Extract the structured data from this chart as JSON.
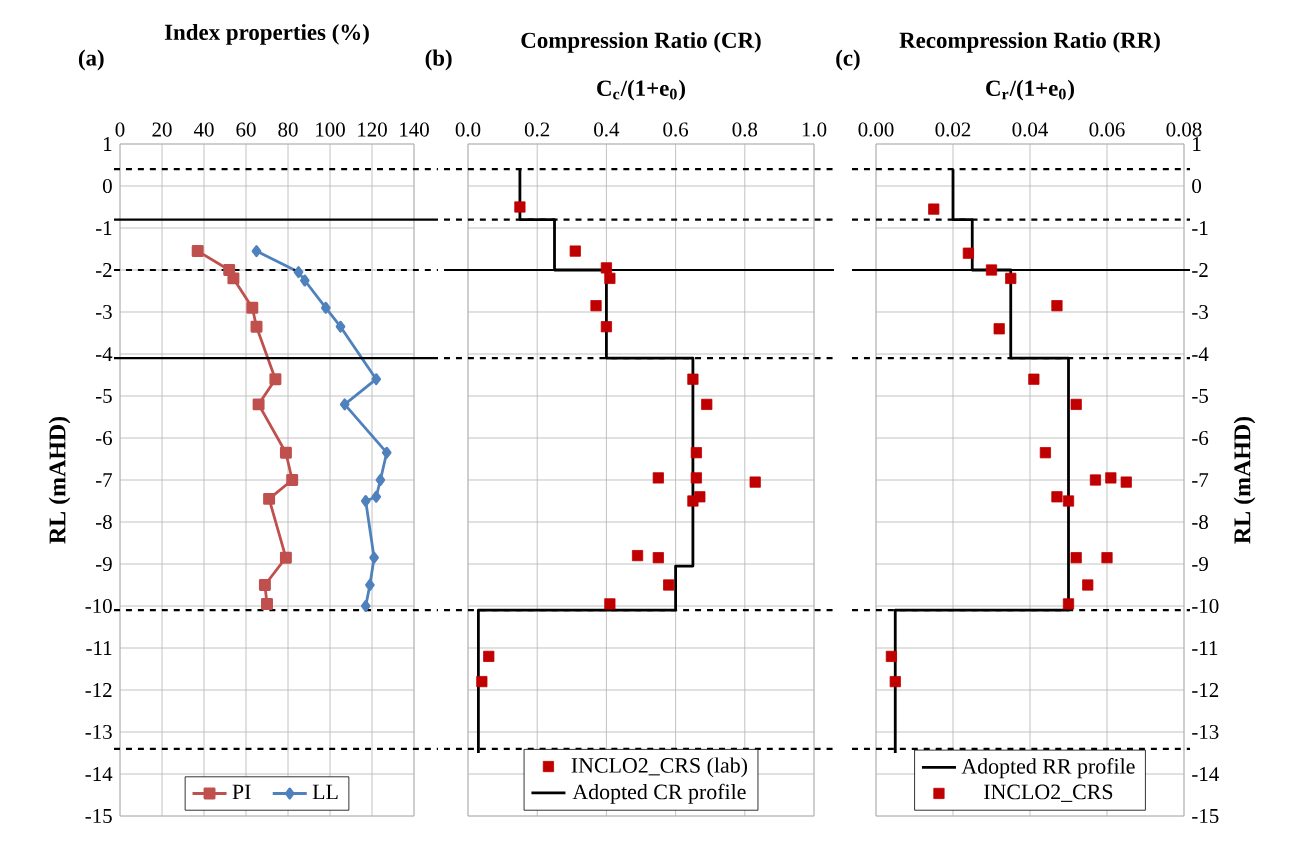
{
  "chart_data": [
    {
      "type": "line",
      "title": "Index properties (%)",
      "ylabel": "RL (mAHD)",
      "annotations": [
        "(a)"
      ],
      "xlim": [
        0,
        140
      ],
      "xticks": [
        0,
        20,
        40,
        60,
        80,
        100,
        120,
        140
      ],
      "ylim": [
        -15,
        1
      ],
      "yticks": [
        1,
        0,
        -1,
        -2,
        -3,
        -4,
        -5,
        -6,
        -7,
        -8,
        -9,
        -10,
        -11,
        -12,
        -13,
        -14,
        -15
      ],
      "grid": true,
      "legend": "bottom",
      "series": [
        {
          "name": "PI",
          "color": "#c0504d",
          "marker": "square",
          "x": [
            37,
            52,
            54,
            63,
            65,
            74,
            66,
            79,
            82,
            71,
            79,
            69,
            70
          ],
          "values": [
            -1.55,
            -2.0,
            -2.2,
            -2.9,
            -3.35,
            -4.6,
            -5.2,
            -6.35,
            -7.0,
            -7.45,
            -8.85,
            -9.5,
            -9.95
          ]
        },
        {
          "name": "LL",
          "color": "#4f81bd",
          "marker": "diamond",
          "x": [
            65,
            85,
            88,
            98,
            105,
            122,
            107,
            127,
            124,
            122,
            117,
            121,
            119,
            117
          ],
          "values": [
            -1.55,
            -2.05,
            -2.25,
            -2.9,
            -3.35,
            -4.6,
            -5.2,
            -6.35,
            -7.0,
            -7.4,
            -7.5,
            -8.85,
            -9.5,
            -10.0
          ]
        }
      ],
      "ref_lines": [
        {
          "axis": "y",
          "value": 0.4,
          "line_style": "dashed"
        },
        {
          "axis": "y",
          "value": -0.8,
          "line_style": "solid"
        },
        {
          "axis": "y",
          "value": -2.0,
          "line_style": "dashed"
        },
        {
          "axis": "y",
          "value": -4.1,
          "line_style": "solid"
        },
        {
          "axis": "y",
          "value": -10.1,
          "line_style": "dashed"
        },
        {
          "axis": "y",
          "value": -13.4,
          "line_style": "dashed"
        }
      ]
    },
    {
      "type": "scatter",
      "title": "Compression Ratio (CR)",
      "xlabel": "C$_{c}$/(1+e$_{0}$)",
      "annotations": [
        "(b)"
      ],
      "xlim": [
        0,
        1
      ],
      "xticks": [
        {
          "value": 0,
          "label": "0.0"
        },
        {
          "value": 0.2,
          "label": "0.2"
        },
        {
          "value": 0.4,
          "label": "0.4"
        },
        {
          "value": 0.6,
          "label": "0.6"
        },
        {
          "value": 0.8,
          "label": "0.8"
        },
        {
          "value": 1,
          "label": "1.0"
        }
      ],
      "ylim": [
        -15,
        1
      ],
      "yticks": [
        1,
        0,
        -1,
        -2,
        -3,
        -4,
        -5,
        -6,
        -7,
        -8,
        -9,
        -10,
        -11,
        -12,
        -13,
        -14,
        -15
      ],
      "tick_labels": "x",
      "grid": true,
      "legend": "bottom",
      "series": [
        {
          "name": "INCLO2_CRS (lab)",
          "type": "scatter",
          "color": "#c00000",
          "marker": "square",
          "x": [
            0.15,
            0.31,
            0.4,
            0.41,
            0.37,
            0.4,
            0.65,
            0.69,
            0.66,
            0.55,
            0.66,
            0.83,
            0.65,
            0.67,
            0.49,
            0.55,
            0.58,
            0.41,
            0.06,
            0.04
          ],
          "values": [
            -0.5,
            -1.55,
            -1.95,
            -2.2,
            -2.85,
            -3.35,
            -4.6,
            -5.2,
            -6.35,
            -6.95,
            -6.95,
            -7.05,
            -7.5,
            -7.4,
            -8.8,
            -8.85,
            -9.5,
            -9.95,
            -11.2,
            -11.8
          ]
        },
        {
          "name": "Adopted CR profile",
          "type": "line",
          "color": "#000000",
          "marker": "none",
          "x": [
            0.15,
            0.15,
            0.25,
            0.25,
            0.4,
            0.4,
            0.65,
            0.65,
            0.6,
            0.6,
            0.03,
            0.03
          ],
          "values": [
            0.4,
            -0.8,
            -0.8,
            -2.0,
            -2.0,
            -4.1,
            -4.1,
            -9.05,
            -9.05,
            -10.1,
            -10.1,
            -13.5
          ]
        }
      ],
      "ref_lines": [
        {
          "axis": "y",
          "value": 0.4,
          "line_style": "dashed"
        },
        {
          "axis": "y",
          "value": -0.8,
          "line_style": "dashed"
        },
        {
          "axis": "y",
          "value": -2.0,
          "line_style": "solid"
        },
        {
          "axis": "y",
          "value": -4.1,
          "line_style": "dashed"
        },
        {
          "axis": "y",
          "value": -10.1,
          "line_style": "dashed"
        },
        {
          "axis": "y",
          "value": -13.4,
          "line_style": "dashed"
        }
      ]
    },
    {
      "type": "scatter",
      "title": "Recompression Ratio (RR)",
      "xlabel": "C$_{r}$/(1+e$_{0}$)",
      "ylabel": "RL (mAHD)",
      "annotations": [
        "(c)"
      ],
      "xlim": [
        0,
        0.08
      ],
      "xticks": [
        {
          "value": 0,
          "label": "0.00"
        },
        {
          "value": 0.02,
          "label": "0.02"
        },
        {
          "value": 0.04,
          "label": "0.04"
        },
        {
          "value": 0.06,
          "label": "0.06"
        },
        {
          "value": 0.08,
          "label": "0.08"
        }
      ],
      "ylim": [
        -15,
        1
      ],
      "yticks": [
        1,
        0,
        -1,
        -2,
        -3,
        -4,
        -5,
        -6,
        -7,
        -8,
        -9,
        -10,
        -11,
        -12,
        -13,
        -14,
        -15
      ],
      "grid": true,
      "legend": "bottom",
      "series": [
        {
          "name": "Adopted RR profile",
          "type": "line",
          "color": "#000000",
          "marker": "none",
          "x": [
            0.02,
            0.02,
            0.025,
            0.025,
            0.035,
            0.035,
            0.05,
            0.05,
            0.005,
            0.005
          ],
          "values": [
            0.4,
            -0.8,
            -0.8,
            -2.0,
            -2.0,
            -4.1,
            -4.1,
            -10.1,
            -10.1,
            -13.5
          ]
        },
        {
          "name": "INCLO2_CRS",
          "type": "scatter",
          "color": "#c00000",
          "marker": "square",
          "x": [
            0.015,
            0.024,
            0.03,
            0.035,
            0.047,
            0.032,
            0.041,
            0.052,
            0.044,
            0.057,
            0.061,
            0.065,
            0.047,
            0.05,
            0.052,
            0.06,
            0.055,
            0.05,
            0.004,
            0.005
          ],
          "values": [
            -0.55,
            -1.6,
            -2.0,
            -2.2,
            -2.85,
            -3.4,
            -4.6,
            -5.2,
            -6.35,
            -7.0,
            -6.95,
            -7.05,
            -7.4,
            -7.5,
            -8.85,
            -8.85,
            -9.5,
            -9.95,
            -11.2,
            -11.8
          ]
        }
      ],
      "ref_lines": [
        {
          "axis": "y",
          "value": 0.4,
          "line_style": "dashed"
        },
        {
          "axis": "y",
          "value": -0.8,
          "line_style": "dashed"
        },
        {
          "axis": "y",
          "value": -2.0,
          "line_style": "solid"
        },
        {
          "axis": "y",
          "value": -4.1,
          "line_style": "dashed"
        },
        {
          "axis": "y",
          "value": -10.1,
          "line_style": "dashed"
        },
        {
          "axis": "y",
          "value": -13.4,
          "line_style": "dashed"
        }
      ]
    }
  ]
}
